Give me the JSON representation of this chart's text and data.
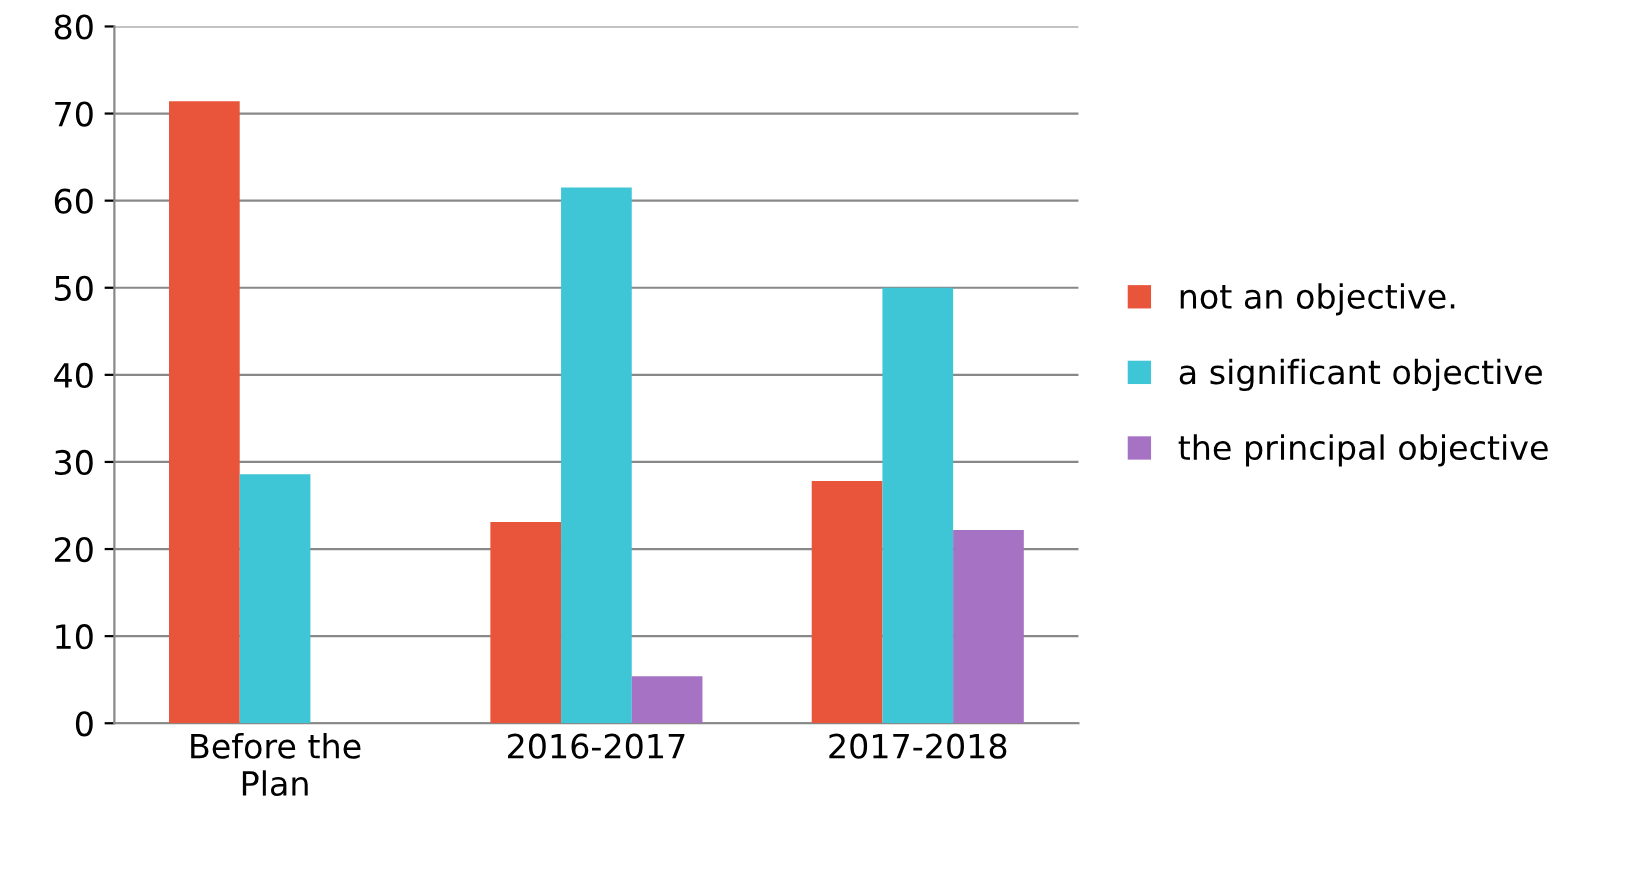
{
  "chart_data": {
    "type": "bar",
    "categories": [
      "Before the\nPlan",
      "2016-2017",
      "2017-2018"
    ],
    "series": [
      {
        "name": "not an objective.",
        "color": "#e8553a",
        "values": [
          71.4,
          23.1,
          27.8
        ]
      },
      {
        "name": "a significant objective",
        "color": "#3ec6d6",
        "values": [
          28.6,
          61.5,
          50.0
        ]
      },
      {
        "name": "the principal objective",
        "color": "#a673c4",
        "values": [
          null,
          5.4,
          22.2
        ]
      }
    ],
    "ylim": [
      0,
      80
    ],
    "yticks": [
      0,
      10,
      20,
      30,
      40,
      50,
      60,
      70,
      80
    ],
    "grid": "y",
    "legend": "right"
  }
}
